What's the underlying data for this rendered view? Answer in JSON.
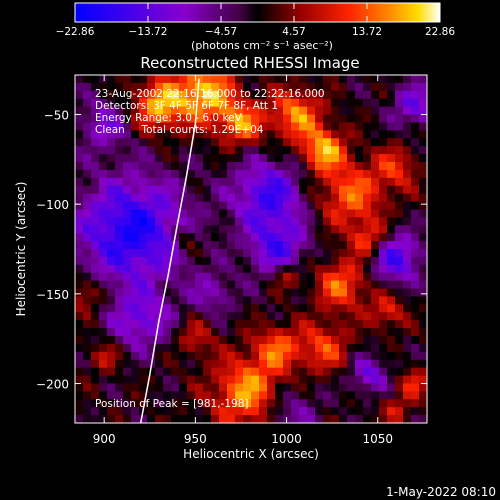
{
  "chart_data": {
    "type": "heatmap",
    "title": "Reconstructed RHESSI Image",
    "xlabel": "Heliocentric X (arcsec)",
    "ylabel": "Heliocentric Y (arcsec)",
    "xlim": [
      884,
      1077
    ],
    "ylim": [
      -222,
      -28
    ],
    "x_ticks": [
      900,
      950,
      1000,
      1050
    ],
    "y_ticks": [
      -50,
      -100,
      -150,
      -200
    ],
    "x_tick_labels": [
      "900",
      "950",
      "1000",
      "1050"
    ],
    "y_tick_labels": [
      "−50",
      "−100",
      "−150",
      "−200"
    ],
    "colorbar": {
      "ticks": [
        -22.86,
        -13.72,
        -4.57,
        4.57,
        13.72,
        22.86
      ],
      "tick_labels": [
        "−22.86",
        "−13.72",
        "−4.57",
        "4.57",
        "13.72",
        "22.86"
      ],
      "label": "(photons cm⁻² s⁻¹ asec⁻²)",
      "range": [
        -22.86,
        22.86
      ]
    },
    "annotations": [
      "23-Aug-2002 22:16:16.000 to 22:22:16.000",
      "Detectors: 3F 4F 5F 6F 7F 8F, Att 1",
      "Energy Range: 3.0 - 6.0 keV",
      "Clean     Total counts: 1.29E+04",
      "Position of Peak = [981,-198]"
    ],
    "limb_curve": {
      "x": [
        920,
        925,
        930,
        935,
        940,
        945,
        950,
        952
      ],
      "y": [
        -222,
        -195,
        -165,
        -140,
        -112,
        -85,
        -55,
        -30
      ]
    },
    "grid": false,
    "colors": {
      "background": "#000000",
      "text": "#ffffff"
    }
  },
  "footer": {
    "date": "1-May-2022 08:10"
  }
}
